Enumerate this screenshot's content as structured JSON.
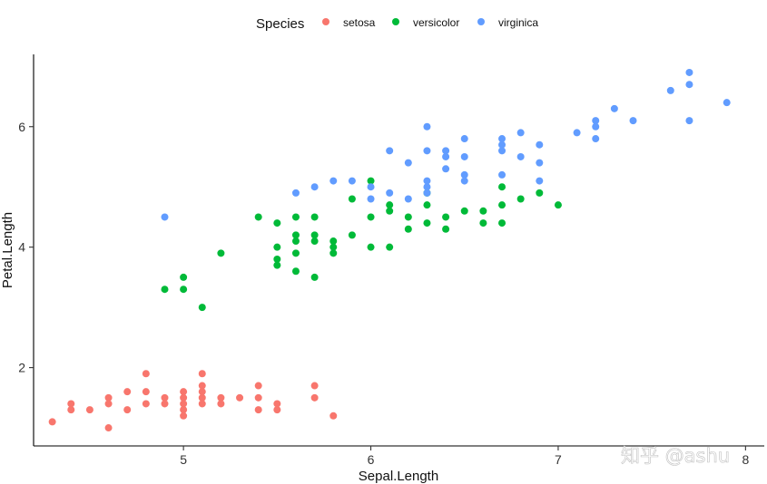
{
  "chart_data": {
    "type": "scatter",
    "title": "",
    "xlabel": "Sepal.Length",
    "ylabel": "Petal.Length",
    "xlim": [
      4.2,
      8.1
    ],
    "ylim": [
      0.7,
      7.2
    ],
    "xticks": [
      5,
      6,
      7,
      8
    ],
    "yticks": [
      2,
      4,
      6
    ],
    "grid": false,
    "legend": {
      "title": "Species",
      "position": "top",
      "entries": [
        "setosa",
        "versicolor",
        "virginica"
      ]
    },
    "colors": {
      "setosa": "#F8766D",
      "versicolor": "#00BA38",
      "virginica": "#619CFF"
    },
    "series": [
      {
        "name": "setosa",
        "points": [
          [
            4.3,
            1.1
          ],
          [
            4.4,
            1.4
          ],
          [
            4.4,
            1.3
          ],
          [
            4.5,
            1.3
          ],
          [
            4.6,
            1.5
          ],
          [
            4.6,
            1.4
          ],
          [
            4.6,
            1.0
          ],
          [
            4.7,
            1.6
          ],
          [
            4.7,
            1.3
          ],
          [
            4.8,
            1.9
          ],
          [
            4.8,
            1.6
          ],
          [
            4.8,
            1.4
          ],
          [
            4.9,
            1.5
          ],
          [
            4.9,
            1.4
          ],
          [
            5.0,
            1.6
          ],
          [
            5.0,
            1.5
          ],
          [
            5.0,
            1.4
          ],
          [
            5.0,
            1.3
          ],
          [
            5.0,
            1.2
          ],
          [
            5.1,
            1.9
          ],
          [
            5.1,
            1.7
          ],
          [
            5.1,
            1.6
          ],
          [
            5.1,
            1.5
          ],
          [
            5.1,
            1.4
          ],
          [
            5.2,
            1.5
          ],
          [
            5.2,
            1.4
          ],
          [
            5.3,
            1.5
          ],
          [
            5.4,
            1.7
          ],
          [
            5.4,
            1.5
          ],
          [
            5.4,
            1.3
          ],
          [
            5.5,
            1.4
          ],
          [
            5.5,
            1.3
          ],
          [
            5.7,
            1.7
          ],
          [
            5.7,
            1.5
          ],
          [
            5.8,
            1.2
          ]
        ]
      },
      {
        "name": "versicolor",
        "points": [
          [
            4.9,
            3.3
          ],
          [
            5.0,
            3.5
          ],
          [
            5.0,
            3.3
          ],
          [
            5.1,
            3.0
          ],
          [
            5.2,
            3.9
          ],
          [
            5.4,
            4.5
          ],
          [
            5.5,
            4.4
          ],
          [
            5.5,
            4.0
          ],
          [
            5.5,
            3.8
          ],
          [
            5.5,
            3.7
          ],
          [
            5.6,
            4.5
          ],
          [
            5.6,
            4.2
          ],
          [
            5.6,
            4.1
          ],
          [
            5.6,
            3.9
          ],
          [
            5.6,
            3.6
          ],
          [
            5.7,
            4.5
          ],
          [
            5.7,
            4.2
          ],
          [
            5.7,
            4.1
          ],
          [
            5.7,
            3.5
          ],
          [
            5.8,
            4.1
          ],
          [
            5.8,
            4.0
          ],
          [
            5.8,
            3.9
          ],
          [
            5.9,
            4.8
          ],
          [
            5.9,
            4.2
          ],
          [
            6.0,
            5.1
          ],
          [
            6.0,
            4.5
          ],
          [
            6.0,
            4.0
          ],
          [
            6.1,
            4.7
          ],
          [
            6.1,
            4.6
          ],
          [
            6.1,
            4.0
          ],
          [
            6.2,
            4.5
          ],
          [
            6.2,
            4.3
          ],
          [
            6.3,
            4.9
          ],
          [
            6.3,
            4.7
          ],
          [
            6.3,
            4.4
          ],
          [
            6.4,
            4.5
          ],
          [
            6.4,
            4.3
          ],
          [
            6.5,
            4.6
          ],
          [
            6.6,
            4.6
          ],
          [
            6.6,
            4.4
          ],
          [
            6.7,
            5.0
          ],
          [
            6.7,
            4.7
          ],
          [
            6.7,
            4.4
          ],
          [
            6.8,
            4.8
          ],
          [
            6.9,
            4.9
          ],
          [
            7.0,
            4.7
          ]
        ]
      },
      {
        "name": "virginica",
        "points": [
          [
            4.9,
            4.5
          ],
          [
            5.6,
            4.9
          ],
          [
            5.7,
            5.0
          ],
          [
            5.8,
            5.1
          ],
          [
            5.9,
            5.1
          ],
          [
            6.0,
            5.0
          ],
          [
            6.0,
            4.8
          ],
          [
            6.1,
            5.6
          ],
          [
            6.1,
            4.9
          ],
          [
            6.2,
            5.4
          ],
          [
            6.2,
            4.8
          ],
          [
            6.3,
            6.0
          ],
          [
            6.3,
            5.6
          ],
          [
            6.3,
            5.1
          ],
          [
            6.3,
            5.0
          ],
          [
            6.3,
            4.9
          ],
          [
            6.4,
            5.6
          ],
          [
            6.4,
            5.5
          ],
          [
            6.4,
            5.3
          ],
          [
            6.5,
            5.8
          ],
          [
            6.5,
            5.5
          ],
          [
            6.5,
            5.2
          ],
          [
            6.5,
            5.1
          ],
          [
            6.7,
            5.8
          ],
          [
            6.7,
            5.7
          ],
          [
            6.7,
            5.6
          ],
          [
            6.7,
            5.2
          ],
          [
            6.8,
            5.9
          ],
          [
            6.8,
            5.5
          ],
          [
            6.9,
            5.7
          ],
          [
            6.9,
            5.4
          ],
          [
            6.9,
            5.1
          ],
          [
            7.1,
            5.9
          ],
          [
            7.2,
            6.1
          ],
          [
            7.2,
            6.0
          ],
          [
            7.2,
            5.8
          ],
          [
            7.3,
            6.3
          ],
          [
            7.4,
            6.1
          ],
          [
            7.6,
            6.6
          ],
          [
            7.7,
            6.9
          ],
          [
            7.7,
            6.7
          ],
          [
            7.7,
            6.1
          ],
          [
            7.9,
            6.4
          ]
        ]
      }
    ]
  },
  "watermark": "知乎 @ashu"
}
